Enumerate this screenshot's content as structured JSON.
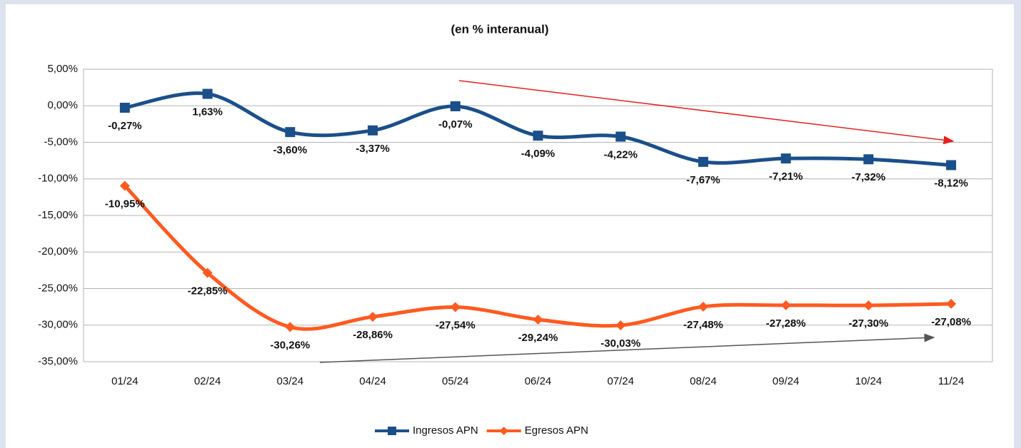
{
  "chart_data": {
    "type": "line",
    "title": "(en % interanual)",
    "categories": [
      "01/24",
      "02/24",
      "03/24",
      "04/24",
      "05/24",
      "06/24",
      "07/24",
      "08/24",
      "09/24",
      "10/24",
      "11/24"
    ],
    "series": [
      {
        "name": "Ingresos APN",
        "color": "#1b4f8a",
        "marker": "square",
        "values": [
          -0.27,
          1.63,
          -3.6,
          -3.37,
          -0.07,
          -4.09,
          -4.22,
          -7.67,
          -7.21,
          -7.32,
          -8.12
        ],
        "value_labels": [
          "-0,27%",
          "1,63%",
          "-3,60%",
          "-3,37%",
          "-0,07%",
          "-4,09%",
          "-4,22%",
          "-7,67%",
          "-7,21%",
          "-7,32%",
          "-8,12%"
        ]
      },
      {
        "name": "Egresos APN",
        "color": "#ff5a1f",
        "marker": "diamond",
        "values": [
          -10.95,
          -22.85,
          -30.26,
          -28.86,
          -27.54,
          -29.24,
          -30.03,
          -27.48,
          -27.28,
          -27.3,
          -27.08
        ],
        "value_labels": [
          "-10,95%",
          "-22,85%",
          "-30,26%",
          "-28,86%",
          "-27,54%",
          "-29,24%",
          "-30,03%",
          "-27,48%",
          "-27,28%",
          "-27,30%",
          "-27,08%"
        ]
      }
    ],
    "ylim": [
      -35,
      5
    ],
    "yticks": [
      {
        "value": 5,
        "label": "5,00%"
      },
      {
        "value": 0,
        "label": "0,00%"
      },
      {
        "value": -5,
        "label": "-5,00%"
      },
      {
        "value": -10,
        "label": "-10,00%"
      },
      {
        "value": -15,
        "label": "-15,00%"
      },
      {
        "value": -20,
        "label": "-20,00%"
      },
      {
        "value": -25,
        "label": "-25,00%"
      },
      {
        "value": -30,
        "label": "-30,00%"
      },
      {
        "value": -35,
        "label": "-35,00%"
      }
    ],
    "grid": true,
    "smooth": true,
    "legend": "bottom"
  }
}
